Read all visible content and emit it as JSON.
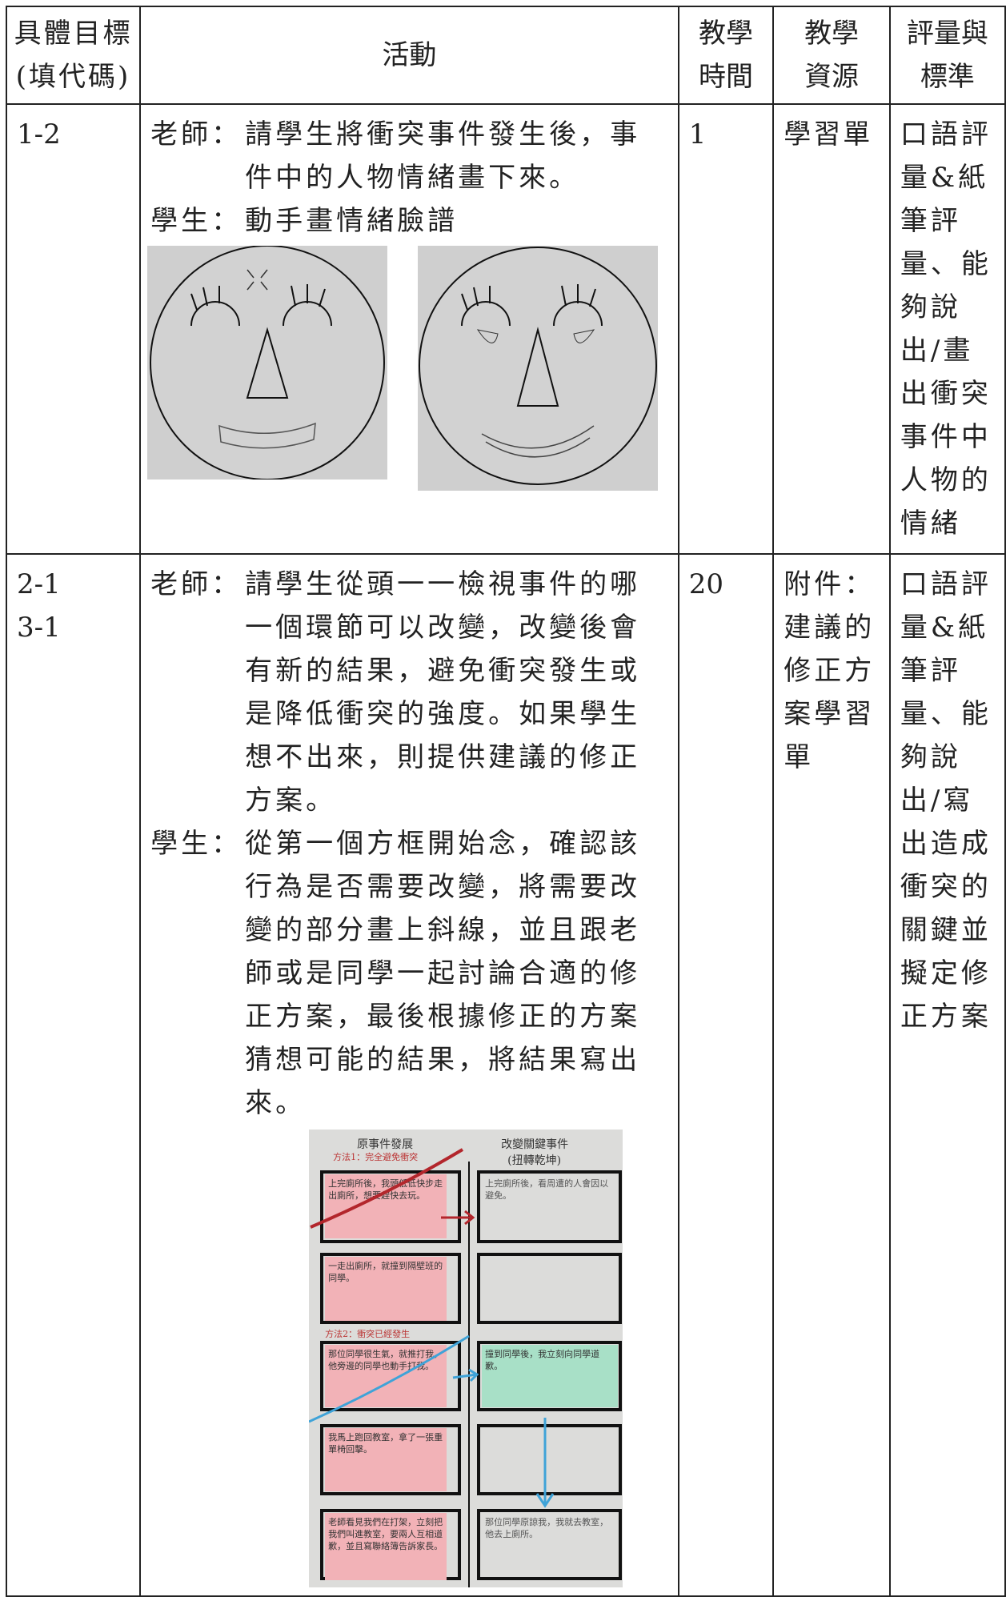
{
  "table": {
    "header": [
      "具體目標\n(填代碼)",
      "活動",
      "教學\n時間",
      "教學\n資源",
      "評量與\n標準"
    ],
    "rows": [
      {
        "goal": "1-2",
        "activity": [
          {
            "role": "老師：",
            "text": "請學生將衝突事件發生後，事件中的人物情緒畫下來。"
          },
          {
            "role": "學生：",
            "text": "動手畫情緒臉譜"
          }
        ],
        "time": "1",
        "resource": "學習單",
        "evaluation": "口語評量&紙筆評量、能夠說出/畫出衝突事件中人物的情緒"
      },
      {
        "goal": "2-1\n3-1",
        "activity": [
          {
            "role": "老師：",
            "text": "請學生從頭一一檢視事件的哪一個環節可以改變，改變後會有新的結果，避免衝突發生或是降低衝突的強度。如果學生想不出來，則提供建議的修正方案。"
          },
          {
            "role": "學生：",
            "text": "從第一個方框開始念，確認該行為是否需要改變，將需要改變的部分畫上斜線，並且跟老師或是同學一起討論合適的修正方案，最後根據修正的方案猜想可能的結果，將結果寫出來。"
          }
        ],
        "time": "20",
        "resource": "附件：建議的修正方案學習單",
        "evaluation": "口語評量&紙筆評量、能夠說出/寫出造成衝突的關鍵並擬定修正方案"
      }
    ]
  },
  "card": {
    "left_title": "原事件發展",
    "right_title": "改變關鍵事件",
    "right_subtitle": "(扭轉乾坤)",
    "annotations": [
      "方法1：完全避免衝突",
      "方法2：衝突已經發生"
    ],
    "left_notes": [
      "上完廁所後，我頭低低快步走出廁所，想要趕快去玩。",
      "一走出廁所，就撞到隔壁班的同學。",
      "那位同學很生氣，就推打我，他旁邊的同學也動手打我。",
      "我馬上跑回教室，拿了一張重單椅回擊。",
      "老師看見我們在打架，立刻把我們叫進教室，要兩人互相道歉，並且寫聯絡簿告訴家長。"
    ],
    "right_notes": [
      "上完廁所後，看周遭的人會因以避免。",
      "撞到同學後，我立刻向同學道歉。",
      "那位同學原諒我，我就去教室，他去上廁所。"
    ]
  }
}
